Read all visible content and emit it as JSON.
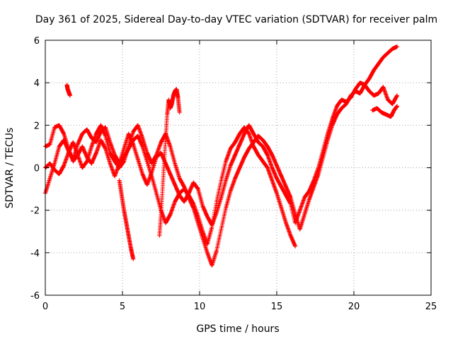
{
  "chart_data": {
    "type": "scatter",
    "title": "Day 361 of 2025, Sidereal Day-to-day VTEC variation (SDTVAR) for receiver palm",
    "xlabel": "GPS time / hours",
    "ylabel": "SDTVAR / TECUs",
    "xlim": [
      0,
      25
    ],
    "ylim": [
      -6,
      6
    ],
    "xticks": [
      0,
      5,
      10,
      15,
      20,
      25
    ],
    "yticks": [
      -6,
      -4,
      -2,
      0,
      2,
      4,
      6
    ],
    "xtick_labels": [
      "0",
      "5",
      "10",
      "15",
      "20",
      "25"
    ],
    "ytick_labels": [
      "-6",
      "-4",
      "-2",
      "0",
      "2",
      "4",
      "6"
    ],
    "grid": true,
    "legend": "none",
    "marker": "+",
    "color": "#ff0000",
    "series": [
      {
        "x": [
          0.0,
          0.3,
          0.6,
          0.9,
          1.2,
          1.5,
          1.8,
          2.1,
          2.4,
          2.7,
          3.0,
          3.3,
          3.6,
          3.9,
          4.2,
          4.5,
          4.8,
          5.1,
          5.4,
          5.7,
          6.0,
          6.3,
          6.6,
          6.9,
          7.2,
          7.5,
          7.8,
          8.1,
          8.4,
          8.7,
          9.0,
          9.3,
          9.6,
          9.9,
          10.2,
          10.5,
          10.8,
          11.1,
          11.4,
          11.7,
          12.0,
          12.3,
          12.6,
          12.9,
          13.2,
          13.5,
          13.8,
          14.1,
          14.4,
          14.7,
          15.0,
          15.3,
          15.6,
          15.9,
          16.2
        ],
        "y": [
          -1.2,
          -0.5,
          0.2,
          1.0,
          1.3,
          0.8,
          0.4,
          1.1,
          1.6,
          1.8,
          1.4,
          1.2,
          1.7,
          1.9,
          1.2,
          0.6,
          0.2,
          0.5,
          0.9,
          1.3,
          1.5,
          1.0,
          0.3,
          -0.4,
          -1.2,
          -2.0,
          -2.6,
          -2.2,
          -1.6,
          -1.2,
          -1.0,
          -1.3,
          -1.7,
          -2.3,
          -3.0,
          -3.6,
          -2.8,
          -1.6,
          -0.6,
          0.3,
          0.9,
          1.2,
          1.6,
          1.9,
          1.6,
          1.0,
          0.6,
          0.3,
          0.0,
          -0.6,
          -1.2,
          -1.9,
          -2.6,
          -3.2,
          -3.7
        ]
      },
      {
        "x": [
          0.0,
          0.3,
          0.6,
          0.9,
          1.2,
          1.5,
          1.8,
          2.1,
          2.4,
          2.7,
          3.0,
          3.3,
          3.6,
          3.9,
          4.2,
          4.5,
          4.8,
          5.1,
          5.4,
          5.7,
          6.0,
          6.3,
          6.6,
          6.9,
          7.2,
          7.5,
          7.8,
          8.1,
          8.4,
          8.7,
          9.0,
          9.3,
          9.6,
          9.9,
          10.2,
          10.5,
          10.8,
          11.1,
          11.4,
          11.7,
          12.0,
          12.3,
          12.6,
          12.9,
          13.2,
          13.5,
          13.8,
          14.1,
          14.4,
          14.7,
          15.0,
          15.3,
          15.6,
          15.9,
          16.2,
          16.5,
          16.8,
          17.1,
          17.4,
          17.7,
          18.0,
          18.3,
          18.6,
          18.9,
          19.2,
          19.5,
          19.8,
          20.1,
          20.4,
          20.7,
          21.0,
          21.3,
          21.6,
          21.9,
          22.2,
          22.5,
          22.8
        ],
        "y": [
          1.0,
          1.1,
          1.9,
          2.0,
          1.6,
          0.9,
          0.3,
          0.6,
          1.0,
          0.5,
          0.2,
          0.7,
          1.3,
          0.9,
          0.2,
          -0.4,
          0.2,
          0.9,
          1.6,
          1.1,
          0.4,
          -0.3,
          -0.8,
          -0.2,
          0.5,
          0.7,
          0.2,
          -0.3,
          -0.8,
          -1.3,
          -1.6,
          -1.2,
          -0.7,
          -1.0,
          -1.8,
          -2.3,
          -2.7,
          -2.1,
          -1.4,
          -0.6,
          0.1,
          0.6,
          1.1,
          1.6,
          2.0,
          1.6,
          1.2,
          1.0,
          0.6,
          0.0,
          -0.5,
          -0.9,
          -1.3,
          -1.7,
          -2.6,
          -2.0,
          -1.4,
          -1.1,
          -0.6,
          0.0,
          0.8,
          1.6,
          2.3,
          2.9,
          3.2,
          3.1,
          3.3,
          3.7,
          4.0,
          3.9,
          3.6,
          3.4,
          3.5,
          3.8,
          3.2,
          3.0,
          3.4
        ]
      },
      {
        "x": [
          0.0,
          0.3,
          0.6,
          0.9,
          1.2,
          1.5,
          1.8,
          2.1,
          2.4,
          2.7,
          3.0,
          3.3,
          3.6,
          3.9,
          4.2,
          4.5,
          4.8,
          5.1,
          5.4,
          5.7,
          6.0,
          6.3,
          6.6,
          6.9,
          7.2,
          7.5,
          7.8,
          8.1,
          8.4,
          8.7,
          9.0,
          9.3,
          9.6,
          9.9,
          10.2,
          10.5,
          10.8,
          11.1,
          11.4,
          11.7,
          12.0,
          12.3,
          12.6,
          12.9,
          13.2,
          13.5,
          13.8,
          14.1,
          14.4,
          14.7,
          15.0,
          15.3,
          15.6,
          15.9,
          16.2,
          16.5,
          16.8,
          17.1,
          17.4,
          17.7,
          18.0,
          18.3,
          18.6,
          18.9,
          19.2,
          19.5,
          19.8,
          20.1,
          20.4,
          20.7,
          21.0,
          21.3,
          21.6,
          21.9,
          22.2,
          22.5,
          22.8
        ],
        "y": [
          0.0,
          0.2,
          -0.1,
          -0.3,
          0.1,
          0.7,
          1.2,
          0.6,
          0.0,
          0.3,
          1.0,
          1.6,
          2.0,
          1.5,
          0.7,
          0.3,
          0.0,
          0.3,
          1.0,
          1.7,
          2.0,
          1.4,
          0.7,
          0.2,
          0.6,
          1.2,
          1.6,
          1.0,
          0.2,
          -0.5,
          -0.9,
          -1.4,
          -1.9,
          -2.6,
          -3.3,
          -4.0,
          -4.6,
          -3.9,
          -2.9,
          -1.9,
          -1.1,
          -0.5,
          0.0,
          0.5,
          0.9,
          1.2,
          1.5,
          1.3,
          1.0,
          0.6,
          0.1,
          -0.4,
          -0.9,
          -1.4,
          -2.2,
          -2.9,
          -2.2,
          -1.5,
          -0.9,
          -0.3,
          0.5,
          1.3,
          2.0,
          2.5,
          2.8,
          3.0,
          3.4,
          3.6,
          3.5,
          3.9,
          4.2,
          4.6,
          4.9,
          5.2,
          5.4,
          5.6,
          5.7
        ]
      },
      {
        "x": [
          1.4,
          1.45,
          1.5,
          1.55,
          1.6
        ],
        "y": [
          3.9,
          3.7,
          3.6,
          3.5,
          3.4
        ]
      },
      {
        "x": [
          4.8,
          4.95,
          5.1,
          5.25,
          5.4,
          5.55,
          5.7
        ],
        "y": [
          -0.6,
          -1.3,
          -2.0,
          -2.6,
          -3.2,
          -3.8,
          -4.3
        ]
      },
      {
        "x": [
          7.4,
          7.5,
          7.6,
          7.7,
          7.8,
          7.9,
          8.0,
          8.1,
          8.2,
          8.3,
          8.4,
          8.5,
          8.6,
          8.7
        ],
        "y": [
          -3.2,
          -2.2,
          -1.0,
          0.2,
          1.4,
          2.5,
          3.2,
          2.8,
          3.0,
          3.4,
          3.6,
          3.7,
          3.3,
          2.6
        ]
      },
      {
        "x": [
          21.2,
          21.5,
          21.8,
          22.1,
          22.4,
          22.6,
          22.8
        ],
        "y": [
          2.7,
          2.8,
          2.6,
          2.5,
          2.4,
          2.7,
          2.9
        ]
      }
    ]
  }
}
